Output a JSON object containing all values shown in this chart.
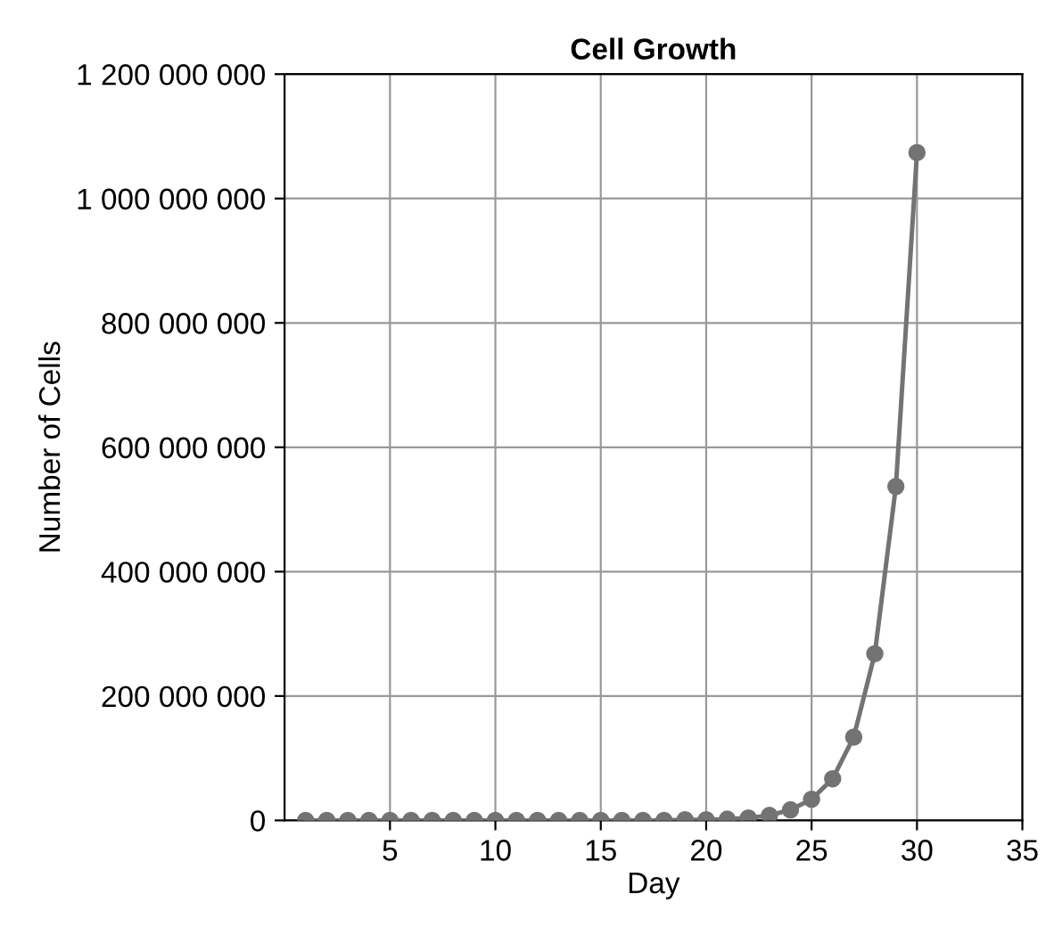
{
  "chart_data": {
    "type": "line",
    "title": "Cell Growth",
    "xlabel": "Day",
    "ylabel": "Number of Cells",
    "series": [
      {
        "color": "#737373",
        "x": [
          1,
          2,
          3,
          4,
          5,
          6,
          7,
          8,
          9,
          10,
          11,
          12,
          13,
          14,
          15,
          16,
          17,
          18,
          19,
          20,
          21,
          22,
          23,
          24,
          25,
          26,
          27,
          28,
          29,
          30
        ],
        "values": [
          0,
          0,
          0,
          0,
          0,
          0,
          0,
          0,
          0,
          0,
          0,
          0,
          0,
          0,
          0,
          0,
          0,
          0,
          1000000,
          1000000,
          2000000,
          4000000,
          8000000,
          17000000,
          34000000,
          67000000,
          134000000,
          268000000,
          537000000,
          1074000000
        ]
      }
    ],
    "xlim": [
      0,
      35
    ],
    "xticks": [
      5,
      10,
      15,
      20,
      25,
      30,
      35
    ],
    "ylim": [
      0,
      1200000000
    ],
    "yticks": [
      0,
      {
        "value": 200000000,
        "label": "200 000 000"
      },
      {
        "value": 400000000,
        "label": "400 000 000"
      },
      {
        "value": 600000000,
        "label": "600 000 000"
      },
      {
        "value": 800000000,
        "label": "800 000 000"
      },
      {
        "value": 1000000000,
        "label": "1 000 000 000"
      },
      {
        "value": 1200000000,
        "label": "1 200 000 000"
      }
    ],
    "grid": true,
    "marker": "circle",
    "line_style": "solid",
    "legend": false
  }
}
